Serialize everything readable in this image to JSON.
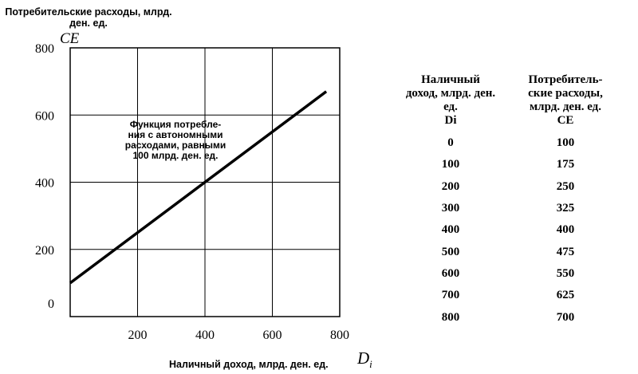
{
  "chart_data": {
    "type": "line",
    "y_axis_title": "Потребительские расходы, млрд. ден. ед.",
    "y_axis_symbol": "CE",
    "x_axis_title": "Наличный доход, млрд. ден. ед.",
    "x_axis_symbol": "D",
    "x_axis_symbol_subscript": "i",
    "x_ticks": [
      "200",
      "400",
      "600",
      "800"
    ],
    "y_ticks": [
      "0",
      "200",
      "400",
      "600",
      "800"
    ],
    "xlim": [
      0,
      800
    ],
    "ylim": [
      0,
      800
    ],
    "grid": true,
    "series": [
      {
        "x": [
          0,
          100,
          200,
          300,
          400,
          500,
          600,
          700,
          800
        ],
        "y": [
          100,
          175,
          250,
          325,
          400,
          475,
          550,
          625,
          700
        ]
      }
    ],
    "annotation_lines": [
      "Функция потребле-",
      "ния с автономными",
      "расходами, равными",
      "100 млрд. ден. ед."
    ]
  },
  "table": {
    "headers": [
      [
        "Наличный",
        "доход, млрд. ден.",
        "ед.",
        "Di"
      ],
      [
        "Потребитель-",
        "ские расходы,",
        "млрд. ден. ед.",
        "CE"
      ]
    ],
    "rows": [
      [
        "0",
        "100"
      ],
      [
        "100",
        "175"
      ],
      [
        "200",
        "250"
      ],
      [
        "300",
        "325"
      ],
      [
        "400",
        "400"
      ],
      [
        "500",
        "475"
      ],
      [
        "600",
        "550"
      ],
      [
        "700",
        "625"
      ],
      [
        "800",
        "700"
      ]
    ]
  }
}
